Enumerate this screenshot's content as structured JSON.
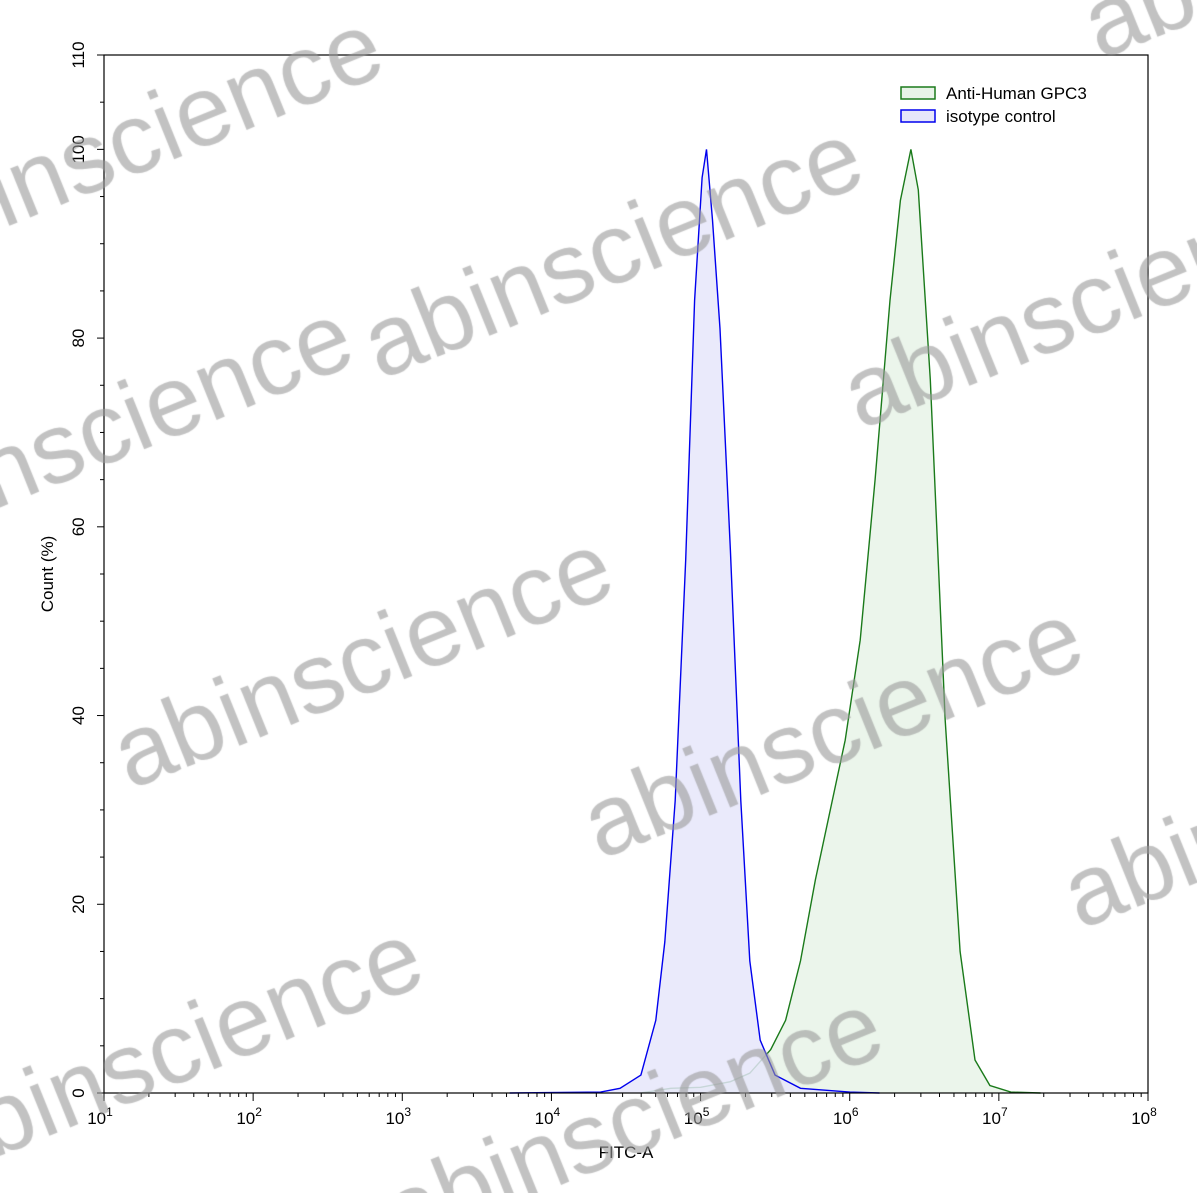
{
  "watermark": "abinscience",
  "chart_data": {
    "type": "area",
    "title": "",
    "xlabel": "FITC-A",
    "ylabel": "Count  (%)",
    "xscale": "log",
    "xlim_exponent": [
      1,
      8
    ],
    "x_tick_base": "10",
    "x_tick_exponents": [
      "1",
      "2",
      "3",
      "4",
      "5",
      "6",
      "7",
      "8"
    ],
    "ylim": [
      0,
      110
    ],
    "y_ticks": [
      "0",
      "20",
      "40",
      "60",
      "80",
      "100",
      "110"
    ],
    "grid": false,
    "legend_position": "top-right",
    "series": [
      {
        "name": "Anti-Human GPC3",
        "color": "#1a7a1a",
        "fill": "#e8f3e8",
        "log10_x": [
          4.6,
          4.8,
          5.0,
          5.2,
          5.33,
          5.47,
          5.57,
          5.67,
          5.77,
          5.87,
          5.97,
          6.07,
          6.17,
          6.27,
          6.34,
          6.41,
          6.46,
          6.54,
          6.64,
          6.74,
          6.84,
          6.94,
          7.08,
          7.28
        ],
        "y": [
          0,
          0.5,
          0.6,
          1.2,
          2.1,
          4.6,
          7.7,
          14,
          22.6,
          30,
          37.4,
          48,
          65,
          84,
          94.6,
          100,
          95.7,
          75.6,
          39.5,
          15,
          3.5,
          0.8,
          0.1,
          0
        ]
      },
      {
        "name": "isotype control",
        "color": "#0000ee",
        "fill": "#e6e6fa",
        "log10_x": [
          3.72,
          4.33,
          4.46,
          4.6,
          4.7,
          4.76,
          4.83,
          4.9,
          4.96,
          5.01,
          5.04,
          5.08,
          5.13,
          5.2,
          5.27,
          5.33,
          5.4,
          5.5,
          5.67,
          6.0,
          6.2
        ],
        "y": [
          0,
          0.1,
          0.5,
          1.9,
          7.7,
          16,
          31,
          56.5,
          84,
          97,
          100,
          92.5,
          81,
          57.5,
          31,
          14,
          5.6,
          1.9,
          0.5,
          0.1,
          0
        ]
      }
    ]
  }
}
